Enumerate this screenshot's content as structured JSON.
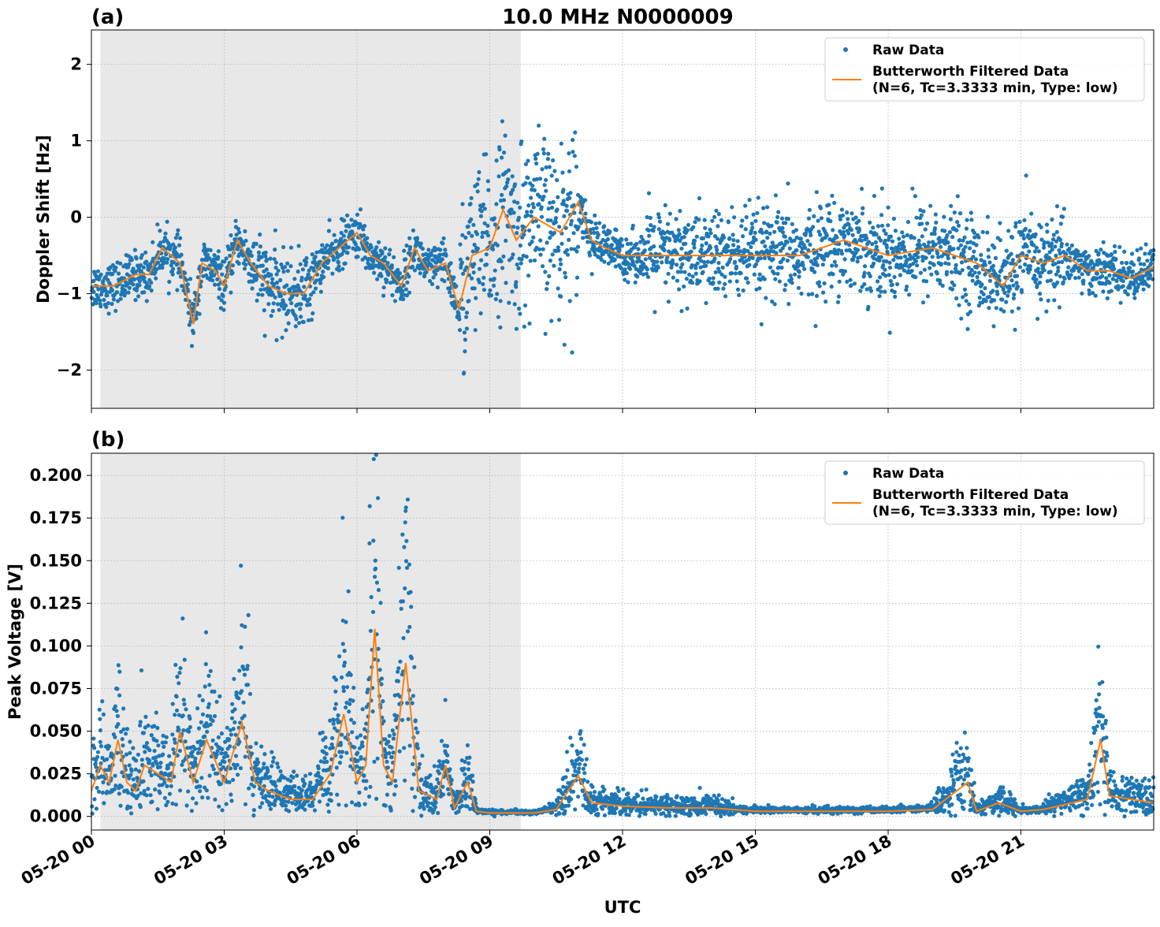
{
  "figure": {
    "title": "10.0 MHz N0000009",
    "xlabel": "UTC",
    "x_ticks": [
      "05-20 00",
      "05-20 03",
      "05-20 06",
      "05-20 09",
      "05-20 12",
      "05-20 15",
      "05-20 18",
      "05-20 21"
    ],
    "colors": {
      "raw": "#1f77b4",
      "filtered": "#ff7f0e",
      "shade": "#e8e8e8"
    }
  },
  "chart_data": [
    {
      "type": "scatter",
      "panel_label": "(a)",
      "ylabel": "Doppler Shift [Hz]",
      "xlim_hours": [
        0,
        24
      ],
      "ylim": [
        -2.5,
        2.45
      ],
      "y_ticks": [
        2,
        1,
        0,
        -1,
        -2
      ],
      "y_tick_labels": [
        "2",
        "1",
        "0",
        "−1",
        "−2"
      ],
      "shaded_region_hours": [
        0.2,
        9.7
      ],
      "legend": {
        "position": "top-right",
        "raw_label": "Raw Data",
        "filtered_label_line1": "Butterworth Filtered Data",
        "filtered_label_line2": "(N=6, Tc=3.3333 min, Type: low)"
      },
      "series": [
        {
          "name": "Raw Data",
          "kind": "scatter"
        },
        {
          "name": "Butterworth Filtered Data",
          "kind": "line",
          "x_hours": [
            0,
            0.5,
            1,
            1.3,
            1.6,
            2,
            2.3,
            2.5,
            2.8,
            3,
            3.3,
            3.6,
            4,
            4.4,
            4.8,
            5.2,
            5.6,
            6,
            6.3,
            6.6,
            7,
            7.3,
            7.6,
            8,
            8.3,
            8.6,
            9,
            9.3,
            9.6,
            10,
            10.3,
            10.6,
            11,
            11.3,
            11.6,
            12,
            13,
            14,
            15,
            16,
            17,
            18,
            19,
            20,
            20.6,
            21,
            21.5,
            22,
            22.5,
            23,
            23.5,
            24
          ],
          "values": [
            -0.9,
            -0.9,
            -0.75,
            -0.75,
            -0.4,
            -0.6,
            -1.4,
            -0.6,
            -0.7,
            -0.9,
            -0.3,
            -0.6,
            -0.9,
            -1.0,
            -1.0,
            -0.6,
            -0.4,
            -0.2,
            -0.5,
            -0.6,
            -0.9,
            -0.4,
            -0.7,
            -0.6,
            -1.2,
            -0.5,
            -0.4,
            0.1,
            -0.3,
            0.0,
            -0.1,
            -0.2,
            0.2,
            -0.3,
            -0.4,
            -0.5,
            -0.5,
            -0.5,
            -0.5,
            -0.5,
            -0.3,
            -0.5,
            -0.4,
            -0.6,
            -0.9,
            -0.5,
            -0.6,
            -0.5,
            -0.7,
            -0.7,
            -0.8,
            -0.65
          ]
        }
      ]
    },
    {
      "type": "scatter",
      "panel_label": "(b)",
      "ylabel": "Peak Voltage [V]",
      "xlim_hours": [
        0,
        24
      ],
      "ylim": [
        -0.008,
        0.213
      ],
      "y_ticks": [
        0.2,
        0.175,
        0.15,
        0.125,
        0.1,
        0.075,
        0.05,
        0.025,
        0.0
      ],
      "y_tick_labels": [
        "0.200",
        "0.175",
        "0.150",
        "0.125",
        "0.100",
        "0.075",
        "0.050",
        "0.025",
        "0.000"
      ],
      "shaded_region_hours": [
        0.2,
        9.7
      ],
      "legend": {
        "position": "top-right",
        "raw_label": "Raw Data",
        "filtered_label_line1": "Butterworth Filtered Data",
        "filtered_label_line2": "(N=6, Tc=3.3333 min, Type: low)"
      },
      "series": [
        {
          "name": "Raw Data",
          "kind": "scatter"
        },
        {
          "name": "Butterworth Filtered Data",
          "kind": "line",
          "x_hours": [
            0,
            0.2,
            0.4,
            0.6,
            0.8,
            1.0,
            1.2,
            1.5,
            1.8,
            2.0,
            2.3,
            2.6,
            3.0,
            3.4,
            3.7,
            4.0,
            4.5,
            5.0,
            5.4,
            5.7,
            6.0,
            6.2,
            6.4,
            6.6,
            6.8,
            7.1,
            7.4,
            7.8,
            8.0,
            8.2,
            8.5,
            8.7,
            9.0,
            9.5,
            10.0,
            10.5,
            11.0,
            11.3,
            12.0,
            13.0,
            14.0,
            15.0,
            16.0,
            17.0,
            18.0,
            19.0,
            19.8,
            20.0,
            20.5,
            21.0,
            21.5,
            22.0,
            22.5,
            22.8,
            23.0,
            23.5,
            24.0
          ],
          "values": [
            0.015,
            0.03,
            0.02,
            0.045,
            0.02,
            0.015,
            0.03,
            0.025,
            0.02,
            0.05,
            0.02,
            0.045,
            0.02,
            0.055,
            0.02,
            0.015,
            0.01,
            0.01,
            0.025,
            0.06,
            0.02,
            0.03,
            0.11,
            0.03,
            0.02,
            0.09,
            0.015,
            0.01,
            0.03,
            0.005,
            0.02,
            0.003,
            0.002,
            0.002,
            0.002,
            0.004,
            0.024,
            0.008,
            0.006,
            0.005,
            0.005,
            0.003,
            0.003,
            0.003,
            0.003,
            0.004,
            0.02,
            0.003,
            0.008,
            0.003,
            0.004,
            0.007,
            0.01,
            0.045,
            0.012,
            0.01,
            0.008
          ]
        }
      ]
    }
  ]
}
